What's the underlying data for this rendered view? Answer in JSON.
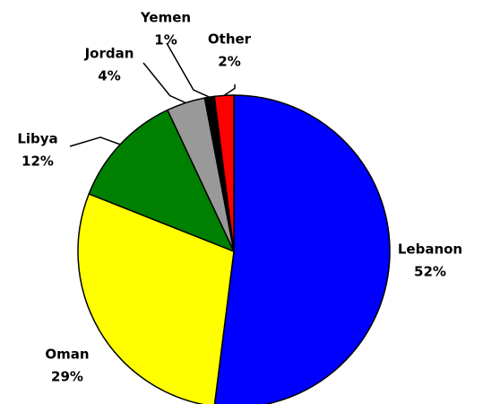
{
  "chart_data": {
    "type": "pie",
    "categories": [
      "Lebanon",
      "Oman",
      "Libya",
      "Jordan",
      "Yemen",
      "Other"
    ],
    "values": [
      52,
      29,
      12,
      4,
      1,
      2
    ],
    "value_labels": [
      "52%",
      "29%",
      "12%",
      "4%",
      "1%",
      "2%"
    ],
    "colors": [
      "#0000ff",
      "#ffff00",
      "#008000",
      "#999999",
      "#000000",
      "#ff0000"
    ]
  }
}
